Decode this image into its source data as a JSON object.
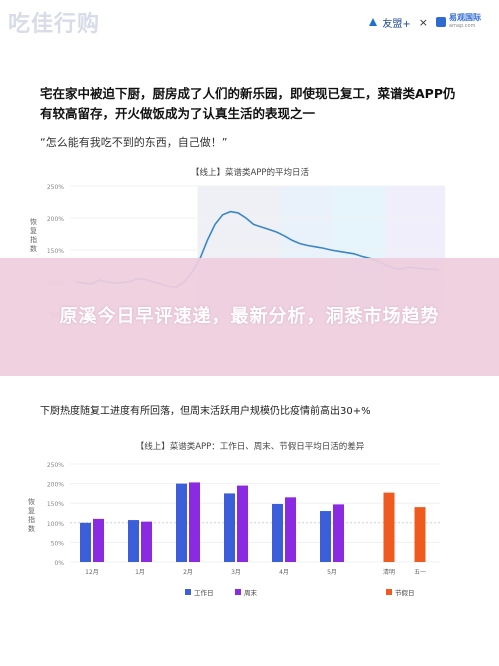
{
  "watermark": "吃佳行购",
  "brands": {
    "brand1": "友盟+",
    "times": "×",
    "brand2_main": "易观国际",
    "brand2_sub": "amap.com"
  },
  "headline": "宅在家中被迫下厨，厨房成了人们的新乐园，即使现已复工，菜谱类APP仍有较高留存，开火做饭成为了认真生活的表现之一",
  "quote": "“怎么能有我吃不到的东西，自己做！”",
  "banner": "原溪今日早评速递，最新分析，洞悉市场趋势",
  "subtitle2": "下厨热度随复工进度有所回落，但周末活跃用户规模仍比疫情前高出30+%",
  "colors": {
    "line": "#3a86c8",
    "workday": "#3b5fd9",
    "weekend": "#8a2be2",
    "holiday": "#ef5a1f",
    "banner_bg": "#eecdde"
  },
  "chart_data": [
    {
      "type": "line",
      "title": "【线上】菜谱类APP的平均日活",
      "ylabel": "恢复指数",
      "yticks": [
        "250%",
        "200%",
        "150%",
        "100%",
        "50%"
      ],
      "ylim": [
        50,
        250
      ],
      "x": [
        0,
        1,
        2,
        3,
        4,
        5,
        6,
        7,
        8,
        9,
        10,
        11,
        12,
        13,
        14,
        15,
        16,
        17,
        18,
        19,
        20,
        21,
        22,
        23,
        24,
        25,
        26,
        27,
        28,
        29,
        30,
        31,
        32,
        33,
        34,
        35,
        36,
        37,
        38,
        39,
        40,
        41,
        42,
        43,
        44,
        45,
        46,
        47
      ],
      "values": [
        100,
        98,
        97,
        103,
        100,
        98,
        99,
        101,
        105,
        104,
        100,
        97,
        93,
        92,
        100,
        115,
        135,
        165,
        190,
        205,
        210,
        208,
        200,
        190,
        186,
        182,
        178,
        172,
        165,
        160,
        157,
        155,
        153,
        150,
        148,
        146,
        144,
        140,
        137,
        133,
        127,
        122,
        120,
        123,
        122,
        121,
        120,
        119
      ],
      "series_name": ""
    },
    {
      "type": "bar",
      "title": "【线上】菜谱类APP：工作日、周末、节假日平均日活的差异",
      "ylabel": "恢复指数",
      "yticks": [
        "250%",
        "200%",
        "150%",
        "100%",
        "50%",
        "0%"
      ],
      "ylim": [
        0,
        250
      ],
      "categories": [
        "12月",
        "1月",
        "2月",
        "3月",
        "4月",
        "5月",
        "清明",
        "五一"
      ],
      "series": [
        {
          "name": "工作日",
          "values": [
            100,
            107,
            200,
            175,
            148,
            130,
            null,
            null
          ]
        },
        {
          "name": "周末",
          "values": [
            110,
            103,
            203,
            195,
            165,
            147,
            null,
            null
          ]
        },
        {
          "name": "节假日",
          "values": [
            null,
            null,
            null,
            null,
            null,
            null,
            177,
            140
          ]
        }
      ],
      "legend": [
        "工作日",
        "周末",
        "节假日"
      ]
    }
  ]
}
